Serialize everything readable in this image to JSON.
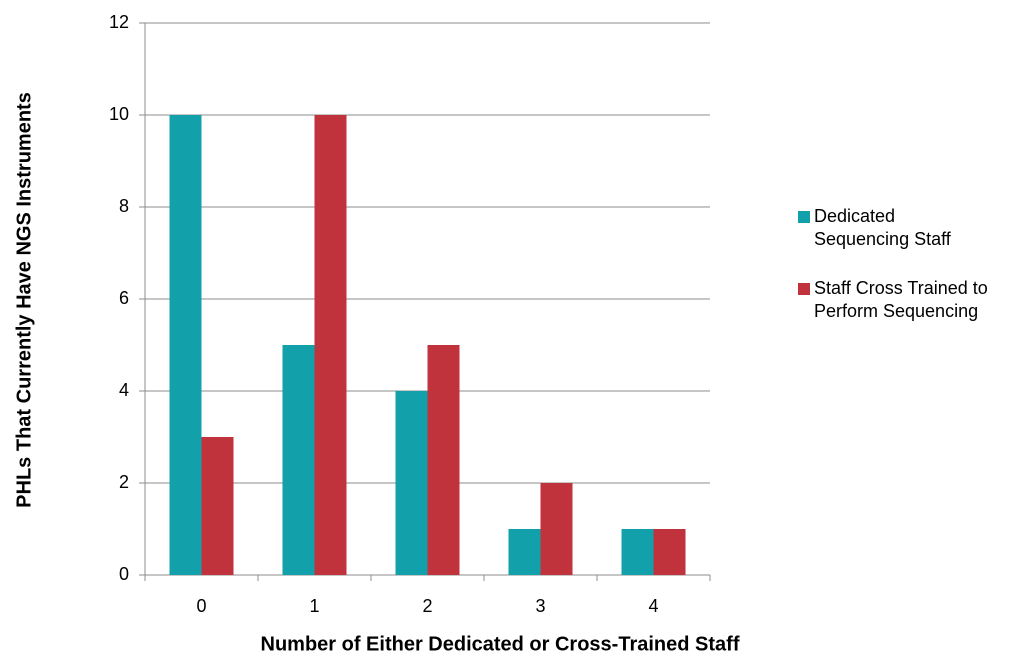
{
  "chart_data": {
    "type": "bar",
    "xlabel": "Number of Either Dedicated or Cross-Trained Staff",
    "ylabel": "PHLs That Currently Have NGS Instruments",
    "categories": [
      "0",
      "1",
      "2",
      "3",
      "4"
    ],
    "series": [
      {
        "name": "Dedicated Sequencing Staff",
        "color": "#12a1ab",
        "values": [
          10,
          5,
          4,
          1,
          1
        ]
      },
      {
        "name": "Staff Cross Trained to Perform Sequencing",
        "color": "#c0323c",
        "values": [
          3,
          10,
          5,
          2,
          1
        ]
      }
    ],
    "ylim": [
      0,
      12
    ],
    "yticks": [
      0,
      2,
      4,
      6,
      8,
      10,
      12
    ],
    "grid": true,
    "legend": "right"
  }
}
